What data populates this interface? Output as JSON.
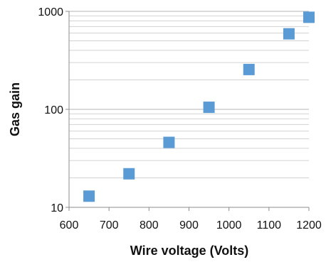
{
  "chart_data": {
    "type": "scatter",
    "title": "",
    "xlabel": "Wire voltage (Volts)",
    "ylabel": "Gas gain",
    "xlim": [
      600,
      1200
    ],
    "ylim": [
      10,
      1000
    ],
    "yscale": "log",
    "xticks": [
      600,
      700,
      800,
      900,
      1000,
      1100,
      1200
    ],
    "yticks": [
      10,
      100,
      1000
    ],
    "grid": "horizontal-minor",
    "marker": "square",
    "marker_color": "#5b9bd5",
    "x": [
      650,
      750,
      850,
      950,
      1050,
      1150,
      1200
    ],
    "y": [
      13,
      22,
      46,
      105,
      255,
      590,
      870
    ]
  }
}
